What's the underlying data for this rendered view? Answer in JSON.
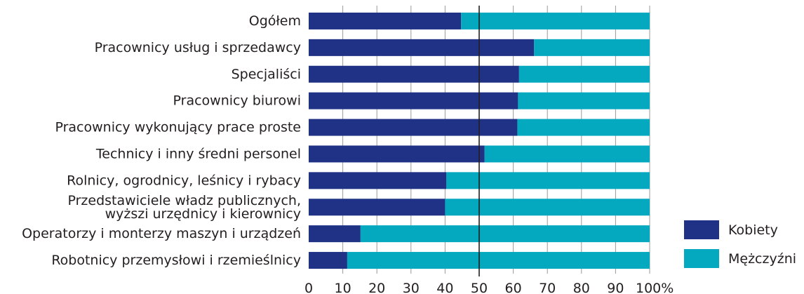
{
  "chart_data": {
    "type": "bar",
    "orientation": "horizontal",
    "stacked": true,
    "categories": [
      "Ogółem",
      "Pracownicy usług i sprzedawcy",
      "Specjaliści",
      "Pracownicy biurowi",
      "Pracownicy wykonujący prace proste",
      "Technicy i inny średni personel",
      "Rolnicy, ogrodnicy, leśnicy i rybacy",
      "Przedstawiciele władz publicznych, wyższi urzędnicy i kierownicy",
      "Operatorzy i monterzy maszyn i urządzeń",
      "Robotnicy przemysłowi i rzemieślnicy"
    ],
    "category_lines": [
      [
        "Ogółem"
      ],
      [
        "Pracownicy usług i sprzedawcy"
      ],
      [
        "Specjaliści"
      ],
      [
        "Pracownicy biurowi"
      ],
      [
        "Pracownicy wykonujący prace proste"
      ],
      [
        "Technicy i inny średni personel"
      ],
      [
        "Rolnicy, ogrodnicy, leśnicy i rybacy"
      ],
      [
        "Przedstawiciele władz publicznych,",
        "wyższi urzędnicy i kierownicy"
      ],
      [
        "Operatorzy i monterzy maszyn i urządzeń"
      ],
      [
        "Robotnicy przemysłowi i rzemieślnicy"
      ]
    ],
    "series": [
      {
        "name": "Kobiety",
        "color": "#1f3286",
        "values": [
          44.7,
          66.1,
          61.7,
          61.4,
          61.2,
          51.6,
          40.4,
          40.0,
          15.2,
          11.3
        ]
      },
      {
        "name": "Mężczyźni",
        "color": "#04a9c0",
        "values": [
          55.3,
          33.9,
          38.3,
          38.6,
          38.8,
          48.4,
          59.6,
          60.0,
          84.8,
          88.7
        ]
      }
    ],
    "x_ticks": [
      "0",
      "10",
      "20",
      "30",
      "40",
      "50",
      "60",
      "70",
      "80",
      "90",
      "100%"
    ],
    "xlim": [
      0,
      100
    ],
    "grid": true,
    "reference_line": 50,
    "legend_position": "right"
  }
}
